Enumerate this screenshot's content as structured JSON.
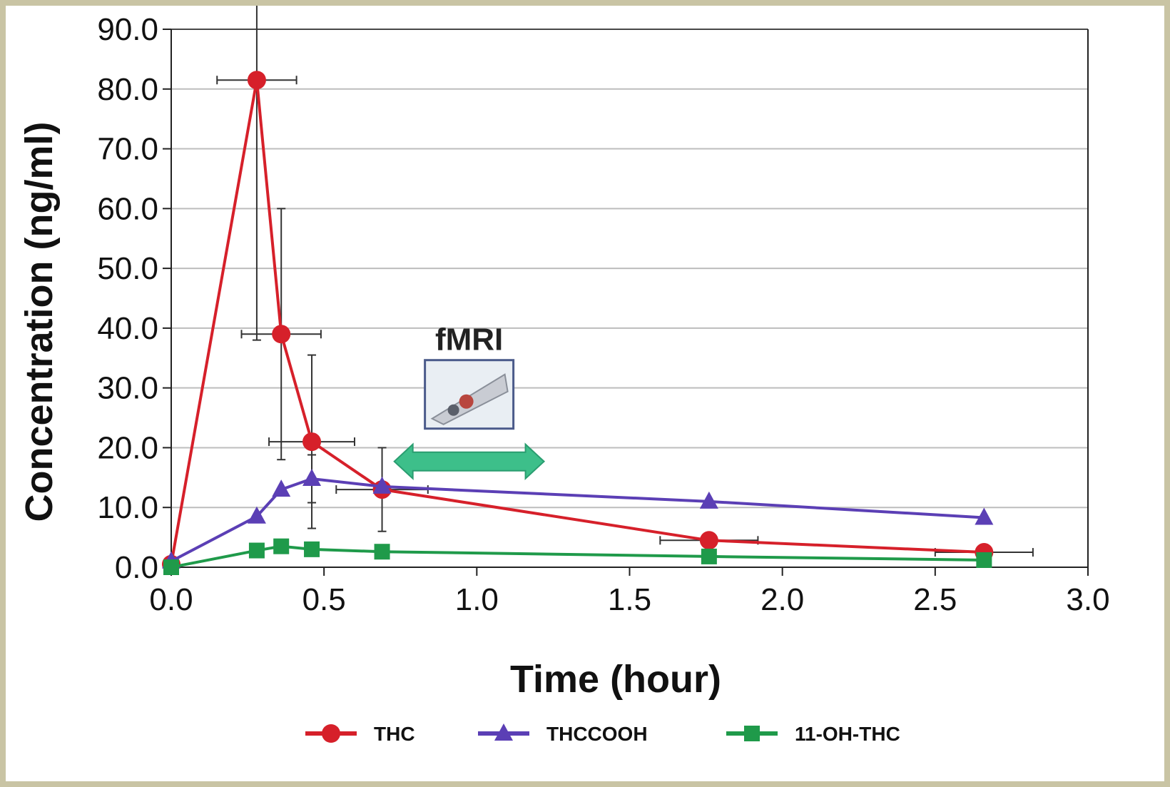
{
  "chart_data": {
    "type": "line",
    "xlabel": "Time (hour)",
    "ylabel": "Concentration (ng/ml)",
    "xlim": [
      0,
      3.0
    ],
    "ylim": [
      0,
      90
    ],
    "x_ticks": [
      "0.0",
      "0.5",
      "1.0",
      "1.5",
      "2.0",
      "2.5",
      "3.0"
    ],
    "y_ticks": [
      "0.0",
      "10.0",
      "20.0",
      "30.0",
      "40.0",
      "50.0",
      "60.0",
      "70.0",
      "80.0",
      "90.0"
    ],
    "grid": "horizontal",
    "legend_position": "bottom",
    "series": [
      {
        "name": "THC",
        "color": "#d6202a",
        "marker": "circle",
        "x": [
          0.0,
          0.28,
          0.36,
          0.46,
          0.69,
          1.76,
          2.66
        ],
        "y": [
          0.5,
          81.5,
          39.0,
          21.0,
          13.0,
          4.5,
          2.5
        ],
        "y_err": [
          0,
          43.5,
          21.0,
          14.5,
          7.0,
          0,
          0
        ],
        "x_err": [
          0,
          0.13,
          0.13,
          0.14,
          0.15,
          0.16,
          0.16
        ]
      },
      {
        "name": "THCCOOH",
        "color": "#5b3fb5",
        "marker": "triangle",
        "x": [
          0.0,
          0.28,
          0.36,
          0.46,
          0.69,
          1.76,
          2.66
        ],
        "y": [
          1.0,
          8.5,
          13.0,
          14.8,
          13.5,
          11.0,
          8.3
        ],
        "y_err": [
          0,
          0,
          0,
          4.0,
          0,
          0,
          0
        ],
        "x_err": [
          0,
          0,
          0,
          0,
          0,
          0,
          0
        ]
      },
      {
        "name": "11-OH-THC",
        "color": "#1f9a4a",
        "marker": "square",
        "x": [
          0.0,
          0.28,
          0.36,
          0.46,
          0.69,
          1.76,
          2.66
        ],
        "y": [
          0.0,
          2.8,
          3.5,
          3.0,
          2.6,
          1.8,
          1.2
        ],
        "y_err": [
          0,
          0,
          0,
          0,
          0,
          0,
          0
        ],
        "x_err": [
          0,
          0,
          0,
          0,
          0,
          0,
          0
        ]
      }
    ],
    "annotations": [
      {
        "text": "fMRI",
        "x_start": 0.73,
        "x_end": 1.22,
        "y_arrow": 17.7,
        "color": "#3dbf8a"
      }
    ]
  }
}
